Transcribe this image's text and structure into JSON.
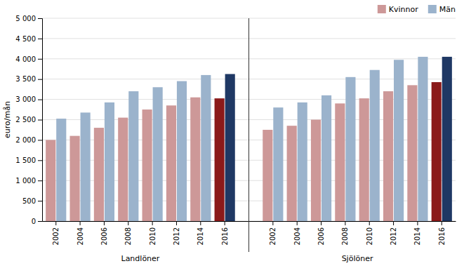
{
  "chart_data": {
    "type": "bar",
    "categories": [
      "2002",
      "2004",
      "2006",
      "2008",
      "2010",
      "2012",
      "2014",
      "2016",
      "2002",
      "2004",
      "2006",
      "2008",
      "2010",
      "2012",
      "2014",
      "2016"
    ],
    "series": [
      {
        "name": "Kvinnor",
        "color": "#cd9898",
        "colors": [
          "#cd9898",
          "#cd9898",
          "#cd9898",
          "#cd9898",
          "#cd9898",
          "#cd9898",
          "#cd9898",
          "#8b1a1a",
          "#cd9898",
          "#cd9898",
          "#cd9898",
          "#cd9898",
          "#cd9898",
          "#cd9898",
          "#cd9898",
          "#8b1a1a"
        ],
        "values": [
          2000,
          2100,
          2300,
          2550,
          2750,
          2850,
          3050,
          3025,
          2250,
          2350,
          2500,
          2900,
          3025,
          3200,
          3350,
          3425
        ]
      },
      {
        "name": "Män",
        "color": "#9bb3cc",
        "colors": [
          "#9bb3cc",
          "#9bb3cc",
          "#9bb3cc",
          "#9bb3cc",
          "#9bb3cc",
          "#9bb3cc",
          "#9bb3cc",
          "#1f3864",
          "#9bb3cc",
          "#9bb3cc",
          "#9bb3cc",
          "#9bb3cc",
          "#9bb3cc",
          "#9bb3cc",
          "#9bb3cc",
          "#1f3864"
        ],
        "values": [
          2525,
          2675,
          2925,
          3200,
          3300,
          3450,
          3600,
          3625,
          2800,
          2925,
          3100,
          3550,
          3725,
          3975,
          4050,
          4050
        ]
      }
    ],
    "ylabel": "euro/mån",
    "ylim": [
      0,
      5000
    ],
    "yticks": [
      0,
      500,
      {
        "value": 1000,
        "label": "1 000"
      },
      {
        "value": 1500,
        "label": "1 500"
      },
      {
        "value": 2000,
        "label": "2 000"
      },
      {
        "value": 2500,
        "label": "2 500"
      },
      {
        "value": 3000,
        "label": "3 000"
      },
      {
        "value": 3500,
        "label": "3 500"
      },
      {
        "value": 4000,
        "label": "4 000"
      },
      {
        "value": 4500,
        "label": "4 500"
      },
      {
        "value": 5000,
        "label": "5 000"
      }
    ],
    "grid": true,
    "legend": "upper right",
    "annotations": [
      "Landlöner",
      "Sjölöner"
    ]
  }
}
